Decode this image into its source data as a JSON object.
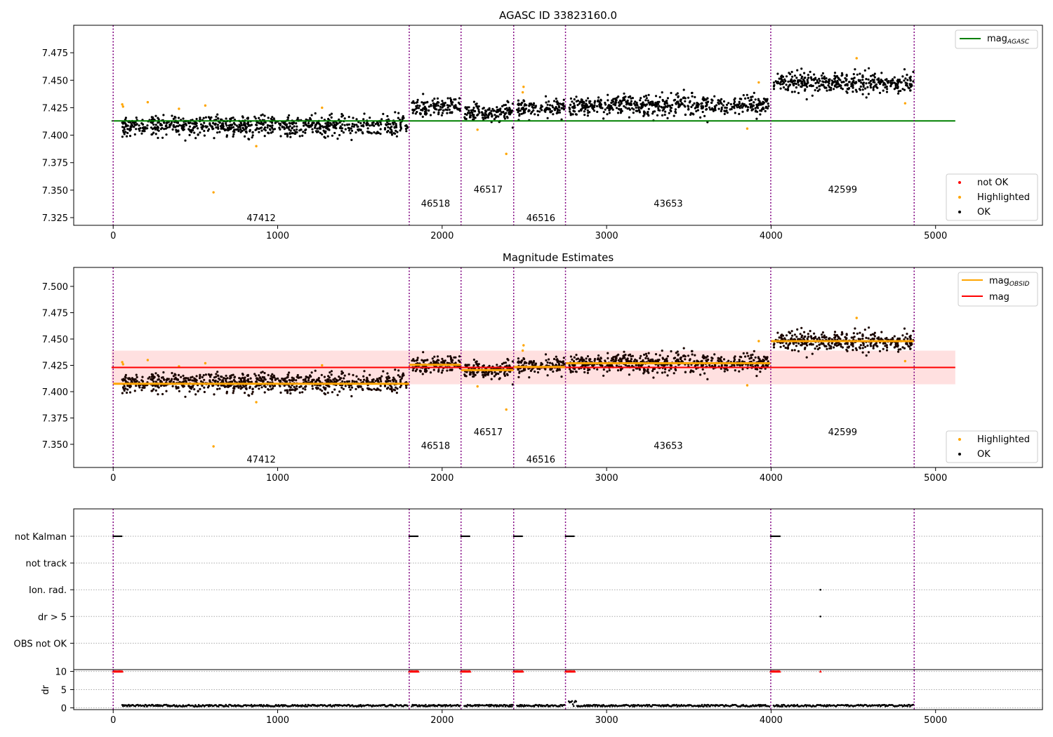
{
  "chart_data": [
    {
      "type": "scatter",
      "title": "AGASC ID 33823160.0",
      "xlim": [
        -240,
        5650
      ],
      "ylim": [
        7.318,
        7.5
      ],
      "xticks": [
        0,
        1000,
        2000,
        3000,
        4000,
        5000
      ],
      "yticks": [
        7.325,
        7.35,
        7.375,
        7.4,
        7.425,
        7.45,
        7.475
      ],
      "obsid_boundaries": [
        0,
        1800,
        2115,
        2435,
        2750,
        3998,
        4870
      ],
      "obsid_labels": [
        {
          "text": "47412",
          "x": 900,
          "y": 7.325
        },
        {
          "text": "46518",
          "x": 1960,
          "y": 7.338
        },
        {
          "text": "46517",
          "x": 2280,
          "y": 7.351
        },
        {
          "text": "46516",
          "x": 2600,
          "y": 7.325
        },
        {
          "text": "43653",
          "x": 3375,
          "y": 7.338
        },
        {
          "text": "42599",
          "x": 4435,
          "y": 7.351
        }
      ],
      "lines": [
        {
          "name": "mag_AGASC",
          "color": "#008000",
          "x": [
            -10,
            5120
          ],
          "y": [
            7.413,
            7.413
          ]
        }
      ],
      "segments": [
        {
          "x0": 55,
          "x1": 1790,
          "mean": 7.4085,
          "spread": 0.0065
        },
        {
          "x0": 1815,
          "x1": 2110,
          "mean": 7.425,
          "spread": 0.006
        },
        {
          "x0": 2135,
          "x1": 2430,
          "mean": 7.421,
          "spread": 0.0055
        },
        {
          "x0": 2455,
          "x1": 2745,
          "mean": 7.424,
          "spread": 0.006
        },
        {
          "x0": 2770,
          "x1": 3990,
          "mean": 7.427,
          "spread": 0.0065
        },
        {
          "x0": 4015,
          "x1": 4865,
          "mean": 7.448,
          "spread": 0.0065
        }
      ],
      "highlighted_points": [
        [
          55,
          7.428
        ],
        [
          60,
          7.426
        ],
        [
          210,
          7.43
        ],
        [
          400,
          7.424
        ],
        [
          560,
          7.427
        ],
        [
          610,
          7.348
        ],
        [
          870,
          7.39
        ],
        [
          1270,
          7.425
        ],
        [
          2215,
          7.405
        ],
        [
          2390,
          7.383
        ],
        [
          2490,
          7.439
        ],
        [
          2495,
          7.444
        ],
        [
          3855,
          7.406
        ],
        [
          3925,
          7.448
        ],
        [
          4520,
          7.47
        ],
        [
          4815,
          7.429
        ]
      ],
      "legend_lines": [
        {
          "label": "mag",
          "subscript": "AGASC",
          "color": "#008000"
        }
      ],
      "legend_markers": [
        {
          "label": "not OK",
          "color": "#ff0000"
        },
        {
          "label": "Highlighted",
          "color": "#ffa500"
        },
        {
          "label": "OK",
          "color": "#000000"
        }
      ],
      "legend_position": "top-right / lower-right"
    },
    {
      "type": "scatter",
      "title": "Magnitude Estimates",
      "xlim": [
        -240,
        5650
      ],
      "ylim": [
        7.328,
        7.518
      ],
      "xticks": [
        0,
        1000,
        2000,
        3000,
        4000,
        5000
      ],
      "yticks": [
        7.35,
        7.375,
        7.4,
        7.425,
        7.45,
        7.475,
        7.5
      ],
      "obsid_boundaries": [
        0,
        1800,
        2115,
        2435,
        2750,
        3998,
        4870
      ],
      "obsid_labels": [
        {
          "text": "47412",
          "x": 900,
          "y": 7.336
        },
        {
          "text": "46518",
          "x": 1960,
          "y": 7.349
        },
        {
          "text": "46517",
          "x": 2280,
          "y": 7.362
        },
        {
          "text": "46516",
          "x": 2600,
          "y": 7.336
        },
        {
          "text": "43653",
          "x": 3375,
          "y": 7.349
        },
        {
          "text": "42599",
          "x": 4435,
          "y": 7.362
        }
      ],
      "mag": {
        "value": 7.423,
        "band": [
          7.407,
          7.439
        ],
        "x": [
          -10,
          5120
        ],
        "color": "#ff0000"
      },
      "mag_obsid": [
        {
          "x0": 0,
          "x1": 1800,
          "value": 7.4075
        },
        {
          "x0": 1800,
          "x1": 2115,
          "value": 7.4255
        },
        {
          "x0": 2115,
          "x1": 2435,
          "value": 7.4205
        },
        {
          "x0": 2435,
          "x1": 2750,
          "value": 7.4235
        },
        {
          "x0": 2750,
          "x1": 3998,
          "value": 7.427
        },
        {
          "x0": 3998,
          "x1": 4870,
          "value": 7.448
        }
      ],
      "legend_lines": [
        {
          "label": "mag",
          "subscript": "OBSID",
          "color": "#ffa500"
        },
        {
          "label": "mag",
          "subscript": "",
          "color": "#ff0000"
        }
      ],
      "legend_markers": [
        {
          "label": "Highlighted",
          "color": "#ffa500"
        },
        {
          "label": "OK",
          "color": "#000000"
        }
      ]
    },
    {
      "type": "scatter",
      "xlim": [
        -240,
        5650
      ],
      "xticks": [
        0,
        1000,
        2000,
        3000,
        4000,
        5000
      ],
      "flag_rows": [
        "not Kalman",
        "not track",
        "Ion. rad.",
        "dr > 5",
        "OBS not OK"
      ],
      "flag_runs": [
        {
          "row": "not Kalman",
          "ranges": [
            [
              0,
              55
            ],
            [
              1800,
              1855
            ],
            [
              2115,
              2170
            ],
            [
              2435,
              2490
            ],
            [
              2750,
              2805
            ],
            [
              3998,
              4055
            ]
          ]
        },
        {
          "row": "Ion. rad.",
          "points": [
            4300
          ]
        },
        {
          "row": "dr > 5",
          "points": [
            4300
          ]
        }
      ],
      "dr_ylabel": "dr",
      "dr_yticks": [
        0,
        5,
        10
      ],
      "dr_ylim": [
        -0.5,
        10.5
      ],
      "dr_capped_runs": [
        [
          0,
          55
        ],
        [
          1800,
          1855
        ],
        [
          2115,
          2170
        ],
        [
          2435,
          2490
        ],
        [
          2750,
          2805
        ],
        [
          3998,
          4055
        ]
      ],
      "dr_capped_points": [
        4300
      ],
      "dr_segments": [
        [
          55,
          1790
        ],
        [
          1815,
          2110
        ],
        [
          2135,
          2430
        ],
        [
          2455,
          2745
        ],
        [
          2770,
          3990
        ],
        [
          4015,
          4865
        ]
      ]
    }
  ]
}
